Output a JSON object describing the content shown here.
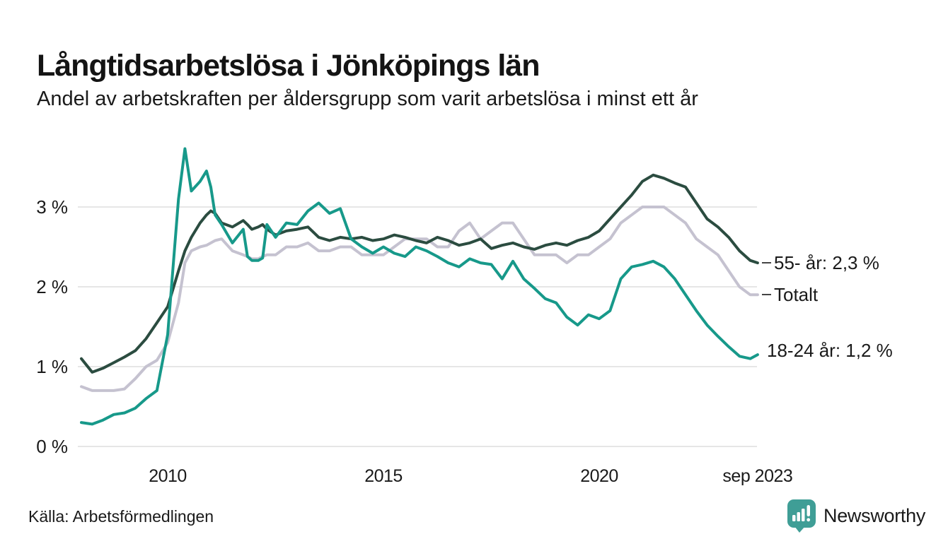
{
  "header": {
    "title": "Långtidsarbetslösa i Jönköpings län",
    "subtitle": "Andel av arbetskraften per åldersgrupp som varit arbetslösa i minst ett år"
  },
  "footer": {
    "source": "Källa: Arbetsförmedlingen",
    "brand": "Newsworthy"
  },
  "colors": {
    "text": "#1a1a1a",
    "grid": "#dedede",
    "label_dash": "#444444",
    "brand_icon": "#3f9e96",
    "brand_text": "#2e9a92",
    "series_55": "#2b4c40",
    "series_totalt": "#c5c2d0",
    "series_18_24": "#17998a"
  },
  "chart_data": {
    "type": "line",
    "title": "Långtidsarbetslösa i Jönköpings län",
    "y_unit": "%",
    "ylim": [
      0,
      3.9
    ],
    "x_range": [
      2008,
      2023.75
    ],
    "grid": "horizontal",
    "legend_position": "right-end-labels",
    "y_ticks": [
      {
        "label": "0 %",
        "value": 0
      },
      {
        "label": "1 %",
        "value": 1
      },
      {
        "label": "2 %",
        "value": 2
      },
      {
        "label": "3 %",
        "value": 3
      }
    ],
    "x_ticks": [
      {
        "label": "2010",
        "year": 2010
      },
      {
        "label": "2015",
        "year": 2015
      },
      {
        "label": "2020",
        "year": 2020
      },
      {
        "label": "sep 2023",
        "year": 2023.67
      }
    ],
    "x": [
      2008.0,
      2008.25,
      2008.5,
      2008.75,
      2009.0,
      2009.25,
      2009.5,
      2009.75,
      2010.0,
      2010.25,
      2010.4,
      2010.55,
      2010.75,
      2010.9,
      2011.0,
      2011.1,
      2011.25,
      2011.5,
      2011.75,
      2011.85,
      2011.95,
      2012.1,
      2012.2,
      2012.3,
      2012.5,
      2012.75,
      2013.0,
      2013.25,
      2013.5,
      2013.75,
      2014.0,
      2014.25,
      2014.5,
      2014.75,
      2015.0,
      2015.25,
      2015.5,
      2015.75,
      2016.0,
      2016.25,
      2016.5,
      2016.75,
      2017.0,
      2017.25,
      2017.5,
      2017.75,
      2018.0,
      2018.25,
      2018.5,
      2018.75,
      2019.0,
      2019.25,
      2019.5,
      2019.75,
      2020.0,
      2020.25,
      2020.5,
      2020.75,
      2021.0,
      2021.25,
      2021.5,
      2021.75,
      2022.0,
      2022.25,
      2022.5,
      2022.75,
      2023.0,
      2023.25,
      2023.5,
      2023.67
    ],
    "series": [
      {
        "id": "55-ar",
        "name": "55- år",
        "end_label": "55- år: 2,3 %",
        "end_value": 2.3,
        "color": "#2b4c40",
        "end_dash": true,
        "values": [
          1.1,
          0.93,
          0.98,
          1.05,
          1.12,
          1.2,
          1.35,
          1.55,
          1.75,
          2.2,
          2.45,
          2.62,
          2.8,
          2.9,
          2.95,
          2.92,
          2.8,
          2.75,
          2.83,
          2.78,
          2.72,
          2.75,
          2.78,
          2.72,
          2.65,
          2.7,
          2.72,
          2.75,
          2.62,
          2.58,
          2.62,
          2.6,
          2.62,
          2.58,
          2.6,
          2.65,
          2.62,
          2.58,
          2.55,
          2.62,
          2.58,
          2.52,
          2.55,
          2.6,
          2.48,
          2.52,
          2.55,
          2.5,
          2.47,
          2.52,
          2.55,
          2.52,
          2.58,
          2.62,
          2.7,
          2.85,
          3.0,
          3.15,
          3.32,
          3.4,
          3.36,
          3.3,
          3.25,
          3.05,
          2.85,
          2.75,
          2.62,
          2.45,
          2.33,
          2.3
        ]
      },
      {
        "id": "totalt",
        "name": "Totalt",
        "end_label": "Totalt",
        "end_value": 1.9,
        "color": "#c5c2d0",
        "end_dash": true,
        "values": [
          0.75,
          0.7,
          0.7,
          0.7,
          0.72,
          0.85,
          1.0,
          1.08,
          1.3,
          1.8,
          2.3,
          2.45,
          2.5,
          2.52,
          2.55,
          2.58,
          2.6,
          2.45,
          2.4,
          2.38,
          2.35,
          2.35,
          2.38,
          2.4,
          2.4,
          2.5,
          2.5,
          2.55,
          2.45,
          2.45,
          2.5,
          2.5,
          2.4,
          2.4,
          2.4,
          2.5,
          2.6,
          2.6,
          2.6,
          2.5,
          2.5,
          2.7,
          2.8,
          2.6,
          2.7,
          2.8,
          2.8,
          2.6,
          2.4,
          2.4,
          2.4,
          2.3,
          2.4,
          2.4,
          2.5,
          2.6,
          2.8,
          2.9,
          3.0,
          3.0,
          3.0,
          2.9,
          2.8,
          2.6,
          2.5,
          2.4,
          2.2,
          2.0,
          1.9,
          1.9
        ]
      },
      {
        "id": "18-24-ar",
        "name": "18-24 år",
        "end_label": "18-24 år: 1,2 %",
        "end_value": 1.2,
        "color": "#17998a",
        "end_dash": false,
        "values": [
          0.3,
          0.28,
          0.33,
          0.4,
          0.42,
          0.48,
          0.6,
          0.7,
          1.4,
          3.1,
          3.73,
          3.2,
          3.32,
          3.45,
          3.25,
          2.9,
          2.78,
          2.55,
          2.72,
          2.38,
          2.33,
          2.33,
          2.36,
          2.78,
          2.62,
          2.8,
          2.78,
          2.95,
          3.05,
          2.92,
          2.98,
          2.6,
          2.5,
          2.42,
          2.5,
          2.42,
          2.38,
          2.5,
          2.45,
          2.38,
          2.3,
          2.25,
          2.35,
          2.3,
          2.28,
          2.1,
          2.32,
          2.1,
          1.98,
          1.85,
          1.8,
          1.62,
          1.52,
          1.65,
          1.6,
          1.7,
          2.1,
          2.25,
          2.28,
          2.32,
          2.25,
          2.1,
          1.9,
          1.7,
          1.52,
          1.38,
          1.25,
          1.13,
          1.1,
          1.15
        ]
      }
    ]
  }
}
